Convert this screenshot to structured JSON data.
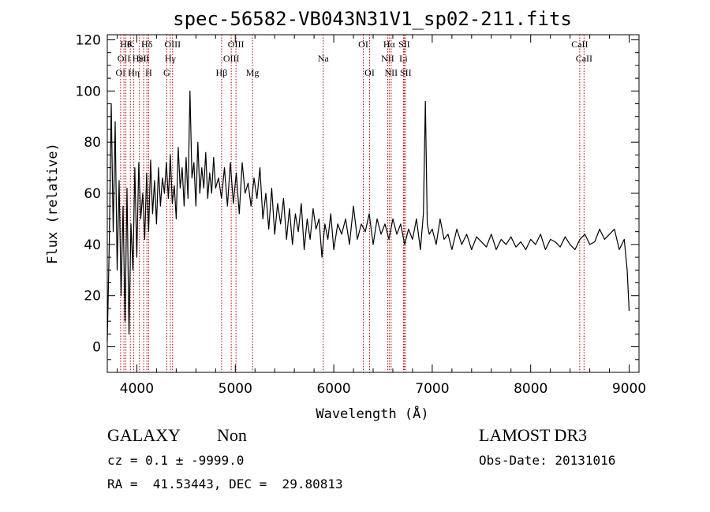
{
  "chart_data": {
    "type": "line",
    "title": "spec-56582-VB043N31V1_sp02-211.fits",
    "xlabel": "Wavelength (Å)",
    "ylabel": "Flux (relative)",
    "xlim": [
      3700,
      9100
    ],
    "ylim": [
      -10,
      122
    ],
    "xticks": [
      4000,
      5000,
      6000,
      7000,
      8000,
      9000
    ],
    "yticks": [
      0,
      20,
      40,
      60,
      80,
      100,
      120
    ],
    "grid": false,
    "series": [
      {
        "x": [
          3700,
          3720,
          3740,
          3760,
          3780,
          3800,
          3820,
          3840,
          3860,
          3880,
          3900,
          3920,
          3940,
          3960,
          3980,
          4000,
          4020,
          4040,
          4060,
          4080,
          4100,
          4120,
          4140,
          4160,
          4180,
          4200,
          4220,
          4240,
          4260,
          4280,
          4300,
          4320,
          4340,
          4360,
          4380,
          4400,
          4420,
          4440,
          4460,
          4480,
          4500,
          4520,
          4540,
          4560,
          4580,
          4600,
          4620,
          4640,
          4660,
          4680,
          4700,
          4720,
          4740,
          4760,
          4780,
          4800,
          4830,
          4860,
          4890,
          4920,
          4950,
          4980,
          5010,
          5040,
          5070,
          5100,
          5130,
          5160,
          5190,
          5220,
          5250,
          5280,
          5310,
          5340,
          5370,
          5400,
          5430,
          5460,
          5490,
          5520,
          5550,
          5580,
          5610,
          5640,
          5670,
          5700,
          5730,
          5760,
          5790,
          5820,
          5850,
          5880,
          5910,
          5940,
          5970,
          6000,
          6040,
          6080,
          6120,
          6160,
          6200,
          6240,
          6280,
          6320,
          6360,
          6400,
          6440,
          6480,
          6520,
          6560,
          6600,
          6640,
          6680,
          6720,
          6760,
          6800,
          6840,
          6880,
          6910,
          6930,
          6950,
          6970,
          7000,
          7040,
          7080,
          7120,
          7160,
          7200,
          7250,
          7300,
          7350,
          7400,
          7450,
          7500,
          7550,
          7600,
          7650,
          7700,
          7750,
          7800,
          7850,
          7900,
          7950,
          8000,
          8050,
          8100,
          8150,
          8200,
          8250,
          8300,
          8350,
          8400,
          8450,
          8500,
          8550,
          8600,
          8650,
          8700,
          8750,
          8800,
          8850,
          8900,
          8950,
          8980,
          9000
        ],
        "y": [
          2,
          40,
          95,
          45,
          88,
          30,
          65,
          20,
          55,
          10,
          62,
          5,
          48,
          30,
          70,
          35,
          72,
          50,
          60,
          42,
          68,
          45,
          73,
          52,
          65,
          48,
          70,
          55,
          66,
          60,
          72,
          58,
          75,
          56,
          63,
          50,
          78,
          62,
          70,
          55,
          74,
          58,
          100,
          66,
          72,
          55,
          80,
          60,
          70,
          62,
          76,
          58,
          68,
          60,
          74,
          62,
          66,
          58,
          70,
          55,
          72,
          56,
          68,
          52,
          72,
          60,
          64,
          55,
          66,
          58,
          70,
          50,
          60,
          46,
          62,
          44,
          56,
          48,
          58,
          42,
          54,
          40,
          52,
          45,
          56,
          38,
          50,
          42,
          54,
          46,
          50,
          35,
          48,
          42,
          52,
          38,
          48,
          44,
          50,
          40,
          55,
          42,
          48,
          45,
          52,
          40,
          50,
          44,
          48,
          42,
          50,
          44,
          48,
          40,
          46,
          42,
          50,
          38,
          52,
          96,
          48,
          44,
          46,
          40,
          50,
          42,
          44,
          38,
          46,
          40,
          44,
          38,
          43,
          41,
          39,
          44,
          38,
          42,
          40,
          43,
          39,
          41,
          38,
          42,
          40,
          44,
          38,
          42,
          41,
          39,
          43,
          40,
          38,
          42,
          44,
          40,
          41,
          46,
          42,
          44,
          46,
          38,
          42,
          30,
          14
        ]
      }
    ],
    "lines": [
      {
        "wl": 3835,
        "label": "OI",
        "row": 2
      },
      {
        "wl": 3869,
        "label": "OII",
        "row": 1
      },
      {
        "wl": 3889,
        "label": "Hθ",
        "row": 0
      },
      {
        "wl": 3934,
        "label": "K",
        "row": 0
      },
      {
        "wl": 3969,
        "label": "Hη",
        "row": 2
      },
      {
        "wl": 4026,
        "label": "HeI",
        "row": 1
      },
      {
        "wl": 4069,
        "label": "SII",
        "row": 1
      },
      {
        "wl": 4102,
        "label": "Hδ",
        "row": 0
      },
      {
        "wl": 4120,
        "label": "H",
        "row": 2
      },
      {
        "wl": 4340,
        "label": "Hγ",
        "row": 1
      },
      {
        "wl": 4304,
        "label": "G",
        "row": 2
      },
      {
        "wl": 4363,
        "label": "OIII",
        "row": 0
      },
      {
        "wl": 4861,
        "label": "Hβ",
        "row": 2
      },
      {
        "wl": 4959,
        "label": "OIII",
        "row": 1
      },
      {
        "wl": 5007,
        "label": "OIII",
        "row": 0
      },
      {
        "wl": 5175,
        "label": "Mg",
        "row": 2
      },
      {
        "wl": 5893,
        "label": "Na",
        "row": 1
      },
      {
        "wl": 6300,
        "label": "OI",
        "row": 0
      },
      {
        "wl": 6364,
        "label": "OI",
        "row": 2
      },
      {
        "wl": 6548,
        "label": "NII",
        "row": 1
      },
      {
        "wl": 6563,
        "label": "Hα",
        "row": 0
      },
      {
        "wl": 6583,
        "label": "NII",
        "row": 2
      },
      {
        "wl": 6708,
        "label": "Li",
        "row": 1
      },
      {
        "wl": 6716,
        "label": "SII",
        "row": 0
      },
      {
        "wl": 6731,
        "label": "SII",
        "row": 2
      },
      {
        "wl": 8498,
        "label": "CaII",
        "row": 0
      },
      {
        "wl": 8542,
        "label": "CaII",
        "row": 1
      }
    ]
  },
  "info": {
    "class_label": "GALAXY",
    "subclass_label": "Non",
    "cz_label": "cz = 0.1 ± -9999.0",
    "radec_label": "RA =  41.53443, DEC =  29.80813",
    "survey_label": "LAMOST DR3",
    "obsdate_label": "Obs-Date: 20131016"
  },
  "colors": {
    "spectrum": "#000000",
    "line_marker": "#b00000",
    "axis": "#000000"
  }
}
